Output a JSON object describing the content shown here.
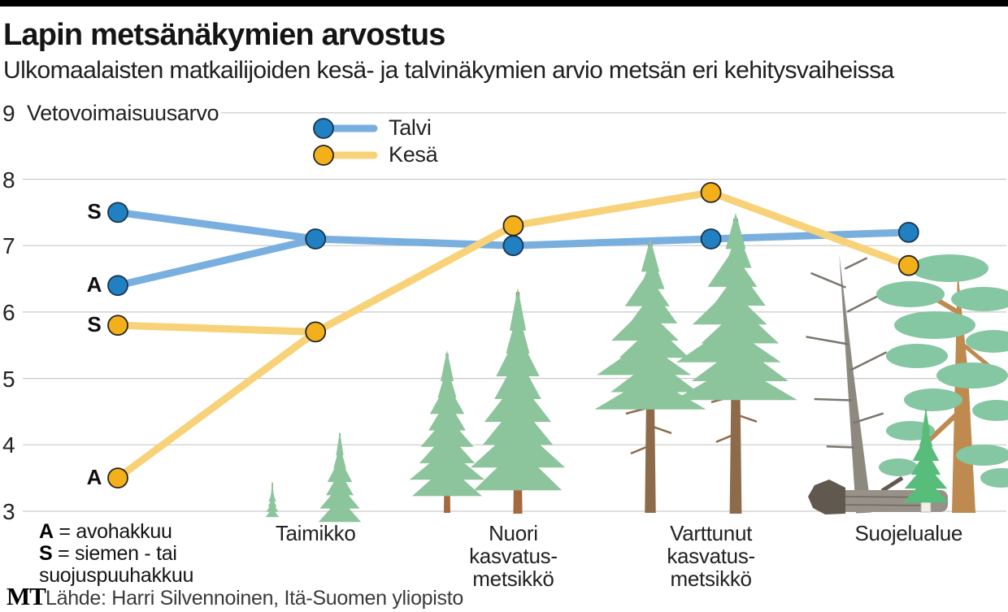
{
  "page": {
    "title": "Lapin metsänäkymien arvostus",
    "subtitle": "Ulkomaalaisten matkailijoiden kesä- ja talvinäkymien arvio metsän eri kehitysvaiheissa"
  },
  "chart_data": {
    "type": "line",
    "title": "Lapin metsänäkymien arvostus",
    "subtitle": "Ulkomaalaisten matkailijoiden kesä- ja talvinäkymien arvio metsän eri kehitysvaiheissa",
    "ylabel": "Vetovoimaisuusarvo",
    "ylim": [
      3,
      9
    ],
    "yticks": [
      9,
      8,
      7,
      6,
      5,
      4,
      3
    ],
    "grid": "horizontal",
    "grid_color": "#c9c9c9",
    "legend_position": "top-center",
    "categories": [
      "Taimikko",
      "Nuori\nkasvatus-\nmetsikkö",
      "Varttunut\nkasvatus-\nmetsikkö",
      "Suojelualue"
    ],
    "series": [
      {
        "name": "Talvi",
        "marker_color": "#2180c2",
        "marker_stroke": "#17344e",
        "line_color": "#79afdf",
        "start_points": [
          {
            "label": "S",
            "value": 7.5
          },
          {
            "label": "A",
            "value": 6.4
          }
        ],
        "values": [
          7.1,
          7.0,
          7.1,
          7.2
        ]
      },
      {
        "name": "Kesä",
        "marker_color": "#f4b01a",
        "marker_stroke": "#242424",
        "line_color": "#f8d278",
        "start_points": [
          {
            "label": "S",
            "value": 5.8
          },
          {
            "label": "A",
            "value": 3.5
          }
        ],
        "values": [
          5.7,
          7.3,
          7.8,
          6.7
        ]
      }
    ]
  },
  "footnotes": [
    {
      "term": "A",
      "rest": " = avohakkuu"
    },
    {
      "term": "S",
      "rest": " = siemen - tai"
    },
    {
      "term": "",
      "rest": "suojuspuuhakkuu"
    }
  ],
  "footer": {
    "logo": "MT",
    "source": "Lähde: Harri Silvennoinen, Itä-Suomen yliopisto"
  },
  "illustration": {
    "foliage": "#8cc49b",
    "foliage_teal": "#85c6a3",
    "foliage_bright": "#58bd7a",
    "trunk_young": "#a5693e",
    "trunk_old": "#8d6b4a",
    "trunk_tan": "#bf8a4f",
    "dead": "#8e897f",
    "dead_branch": "#7b766d",
    "log": "#98918a",
    "log_streak": "#6e675f",
    "log_dark": "#615950",
    "birch": "#f2efe9"
  }
}
